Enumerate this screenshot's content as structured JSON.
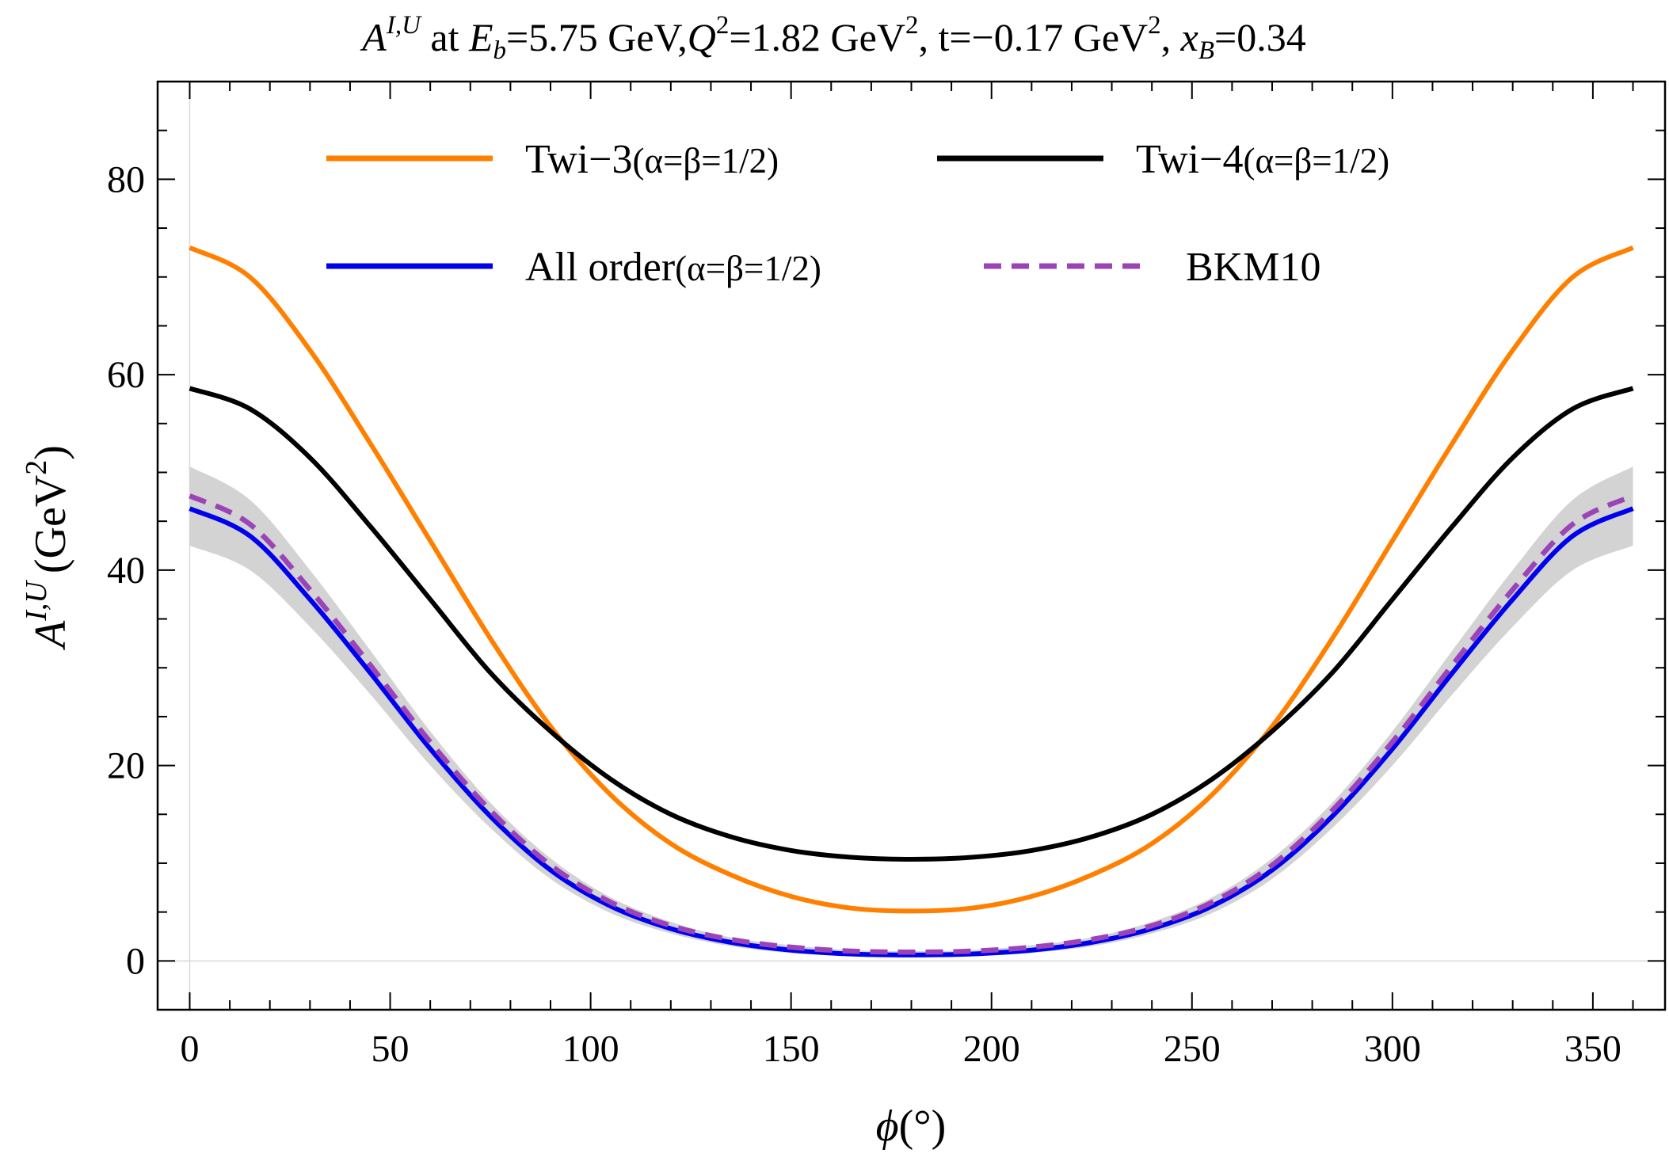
{
  "chart_data": {
    "type": "line",
    "title": "A^{I,U} at E_b=5.75 GeV,Q^2=1.82 GeV^2, t=−0.17 GeV^2, x_B=0.34",
    "title_parts": {
      "sym": "A",
      "sup": "I,U",
      "at": " at ",
      "eb": "E",
      "eb_sub": "b",
      "eb_val": "=5.75 GeV,",
      "q": "Q",
      "q_sup": "2",
      "q_val": "=1.82 GeV",
      "q_unit_sup": "2",
      "t_val": ", t=−0.17 GeV",
      "t_unit_sup": "2",
      "comma": ", ",
      "xb": "x",
      "xb_sub": "B",
      "xb_val": "=0.34"
    },
    "xlabel": "ϕ(°)",
    "xlabel_parts": {
      "phi": "ϕ",
      "unit": "(°)"
    },
    "ylabel": "A^{I,U} (GeV^2)",
    "ylabel_parts": {
      "sym": "A",
      "sup": "I,U",
      "unit": "(GeV",
      "unit_sup": "2",
      "close": ")"
    },
    "xlim": [
      -8,
      368
    ],
    "ylim": [
      -5,
      90
    ],
    "x_ticks": [
      0,
      50,
      100,
      150,
      200,
      250,
      300,
      350
    ],
    "x_tick_labels": [
      "0",
      "50",
      "100",
      "150",
      "200",
      "250",
      "300",
      "350"
    ],
    "y_ticks": [
      0,
      20,
      40,
      60,
      80
    ],
    "y_tick_labels": [
      "0",
      "20",
      "40",
      "60",
      "80"
    ],
    "x": [
      0,
      15,
      30,
      45,
      60,
      75,
      90,
      105,
      120,
      135,
      150,
      165,
      180,
      195,
      210,
      225,
      240,
      255,
      270,
      285,
      300,
      315,
      330,
      345,
      360
    ],
    "series": [
      {
        "name": "Twi−3(α=β=1/2)",
        "color": "#ff8000",
        "style": "solid",
        "values": [
          73.0,
          70.0,
          62.5,
          53.0,
          43.0,
          33.0,
          24.0,
          17.0,
          12.0,
          8.8,
          6.6,
          5.4,
          5.1,
          5.4,
          6.6,
          8.8,
          12.0,
          17.0,
          24.0,
          33.0,
          43.0,
          53.0,
          62.5,
          70.0,
          73.0
        ]
      },
      {
        "name": "Twi−4(α=β=1/2)",
        "color": "#000000",
        "style": "solid",
        "values": [
          58.6,
          56.5,
          51.5,
          44.5,
          37.0,
          29.5,
          23.5,
          18.6,
          15.0,
          12.7,
          11.3,
          10.6,
          10.4,
          10.6,
          11.3,
          12.7,
          15.0,
          18.6,
          23.5,
          29.5,
          37.0,
          44.5,
          51.5,
          56.5,
          58.6
        ]
      },
      {
        "name": "All order(α=β=1/2)",
        "color": "#0000ee",
        "style": "solid",
        "values": [
          46.3,
          43.5,
          37.0,
          29.5,
          21.7,
          14.8,
          9.3,
          5.6,
          3.3,
          1.9,
          1.1,
          0.7,
          0.6,
          0.7,
          1.1,
          1.9,
          3.3,
          5.6,
          9.3,
          14.8,
          21.7,
          29.5,
          37.0,
          43.5,
          46.3
        ]
      },
      {
        "name": "BKM10",
        "color": "#9b44b8",
        "style": "dashed",
        "values": [
          47.6,
          44.7,
          38.0,
          30.3,
          22.4,
          15.4,
          9.8,
          6.0,
          3.6,
          2.2,
          1.4,
          1.0,
          0.9,
          1.0,
          1.4,
          2.2,
          3.6,
          6.0,
          9.8,
          15.4,
          22.4,
          30.3,
          38.0,
          44.7,
          47.6
        ]
      }
    ],
    "band": {
      "series": "All order(α=β=1/2)",
      "color": "#d3d3d3",
      "upper": [
        50.6,
        47.2,
        40.0,
        31.8,
        23.5,
        16.2,
        10.5,
        6.5,
        4.0,
        2.4,
        1.6,
        1.1,
        1.0,
        1.1,
        1.6,
        2.4,
        4.0,
        6.5,
        10.5,
        16.2,
        23.5,
        31.8,
        40.0,
        47.2,
        50.6
      ],
      "lower": [
        42.5,
        40.0,
        34.2,
        27.3,
        20.0,
        13.6,
        8.4,
        4.9,
        2.8,
        1.5,
        0.8,
        0.5,
        0.4,
        0.5,
        0.8,
        1.5,
        2.8,
        4.9,
        8.4,
        13.6,
        20.0,
        27.3,
        34.2,
        40.0,
        42.5
      ]
    },
    "grid": false,
    "legend": {
      "position": "top-center",
      "entries": [
        {
          "label_main": "Twi−3",
          "label_paren": "(α=β=1/2)"
        },
        {
          "label_main": "Twi−4",
          "label_paren": "(α=β=1/2)"
        },
        {
          "label_main": "All order",
          "label_paren": "(α=β=1/2)"
        },
        {
          "label_main": "BKM10",
          "label_paren": ""
        }
      ]
    }
  }
}
